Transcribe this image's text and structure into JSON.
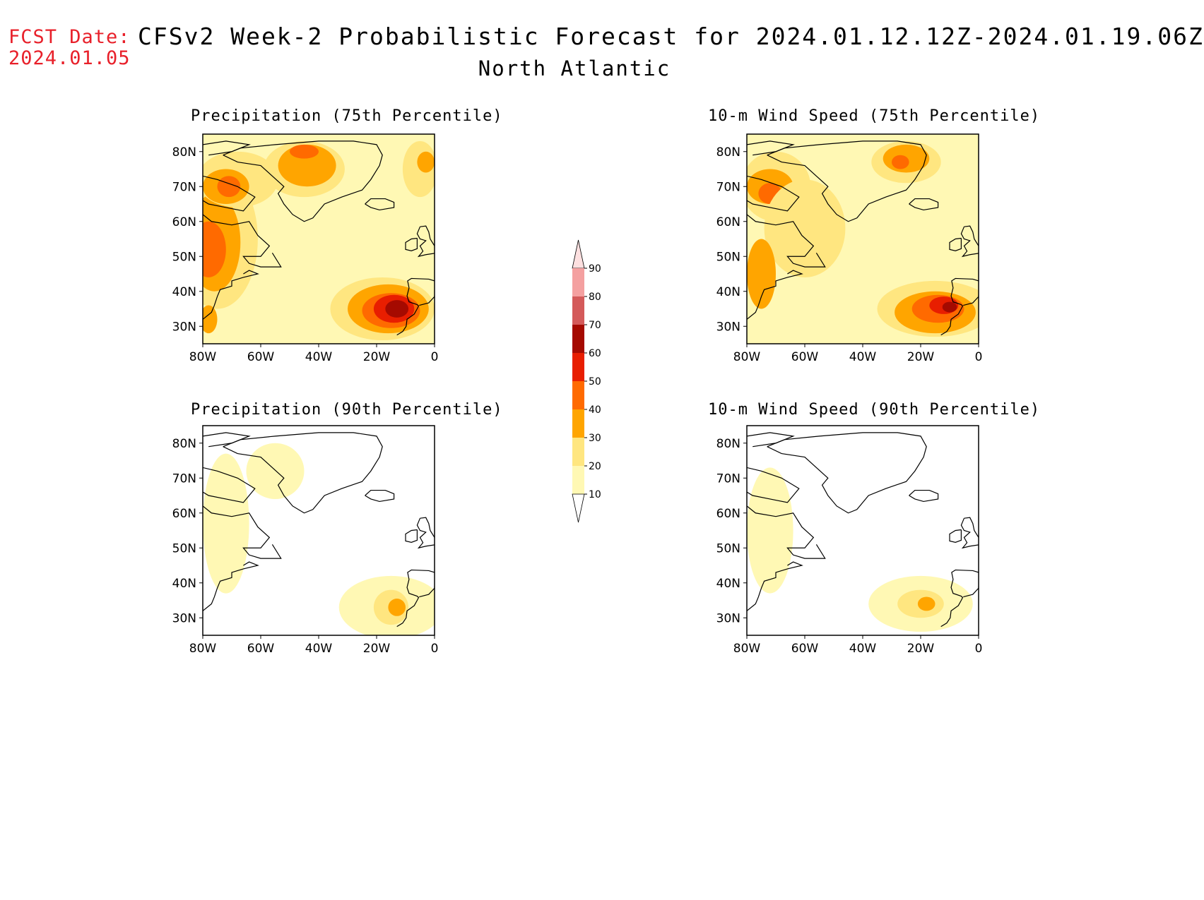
{
  "header": {
    "fcst_label": "FCST Date:",
    "fcst_date": "2024.01.05",
    "title": "CFSv2 Week-2 Probabilistic Forecast for 2024.01.12.12Z-2024.01.19.06Z",
    "region": "North Atlantic"
  },
  "panels": [
    {
      "title": "Precipitation (75th Percentile)"
    },
    {
      "title": "10-m Wind Speed (75th Percentile)"
    },
    {
      "title": "Precipitation (90th Percentile)"
    },
    {
      "title": "10-m Wind Speed (90th Percentile)"
    }
  ],
  "axes": {
    "lat_labels": [
      "80N",
      "70N",
      "60N",
      "50N",
      "40N",
      "30N"
    ],
    "lat_values": [
      80,
      70,
      60,
      50,
      40,
      30
    ],
    "lat_range": [
      25,
      85
    ],
    "lon_labels": [
      "80W",
      "60W",
      "40W",
      "20W",
      "0"
    ],
    "lon_values": [
      -80,
      -60,
      -40,
      -20,
      0
    ],
    "lon_range": [
      -80,
      0
    ]
  },
  "colorbar": {
    "levels": [
      "10",
      "20",
      "30",
      "40",
      "50",
      "60",
      "70",
      "80",
      "90"
    ],
    "colors": [
      "#fff8b4",
      "#ffe680",
      "#ffa500",
      "#ff6a00",
      "#e81e00",
      "#a50a00",
      "#d45a5a",
      "#f4a0a0",
      "#fde0e0"
    ]
  }
}
